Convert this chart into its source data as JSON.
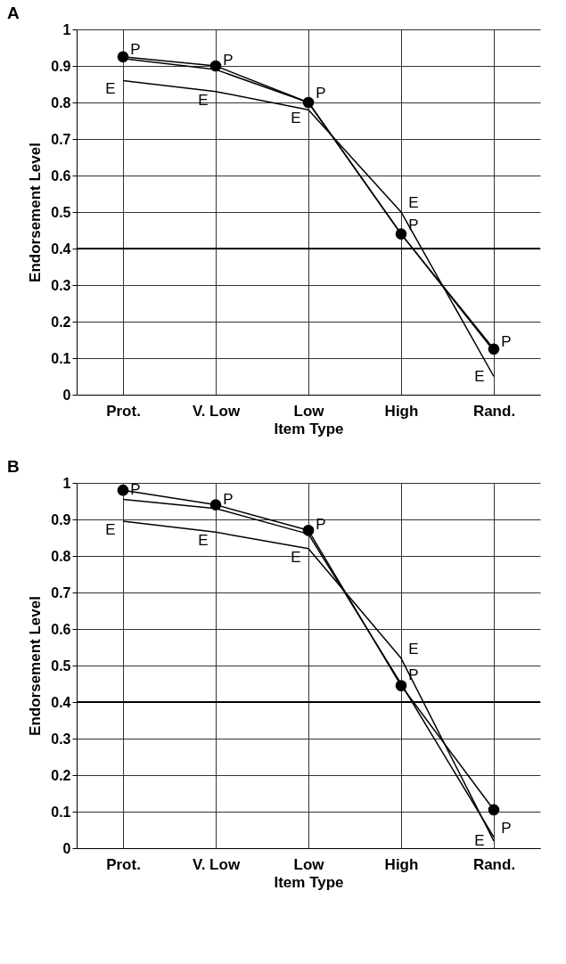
{
  "chart_data": [
    {
      "type": "line",
      "title": "A",
      "xlabel": "Item Type",
      "ylabel": "Endorsement Level",
      "categories": [
        "Prot.",
        "V. Low",
        "Low",
        "High",
        "Rand."
      ],
      "ylim": [
        0,
        1
      ],
      "yticks": [
        0,
        0.1,
        0.2,
        0.3,
        0.4,
        0.5,
        0.6,
        0.7,
        0.8,
        0.9,
        1
      ],
      "grid": true,
      "legend": false,
      "line_style": "solid",
      "series": [
        {
          "color": "#000000",
          "marker": "circle",
          "values": [
            0.925,
            0.9,
            0.8,
            0.44,
            0.125
          ]
        },
        {
          "name": "P",
          "color": "#000000",
          "marker": "none",
          "values": [
            0.92,
            0.89,
            0.8,
            0.44,
            0.12
          ]
        },
        {
          "name": "E",
          "color": "#000000",
          "marker": "none",
          "values": [
            0.86,
            0.83,
            0.78,
            0.5,
            0.05
          ]
        }
      ],
      "ref_lines": [
        {
          "axis": "y",
          "value": 0.4,
          "color": "#000000"
        }
      ]
    },
    {
      "type": "line",
      "title": "B",
      "xlabel": "Item Type",
      "ylabel": "Endorsement Level",
      "categories": [
        "Prot.",
        "V. Low",
        "Low",
        "High",
        "Rand."
      ],
      "ylim": [
        0,
        1
      ],
      "yticks": [
        0,
        0.1,
        0.2,
        0.3,
        0.4,
        0.5,
        0.6,
        0.7,
        0.8,
        0.9,
        1
      ],
      "grid": true,
      "legend": false,
      "line_style": "solid",
      "series": [
        {
          "color": "#000000",
          "marker": "circle",
          "values": [
            0.98,
            0.94,
            0.87,
            0.445,
            0.105
          ]
        },
        {
          "name": "P",
          "color": "#000000",
          "marker": "none",
          "values": [
            0.955,
            0.93,
            0.86,
            0.45,
            0.03
          ]
        },
        {
          "name": "E",
          "color": "#000000",
          "marker": "none",
          "values": [
            0.895,
            0.865,
            0.82,
            0.52,
            0.02
          ]
        }
      ],
      "ref_lines": [
        {
          "axis": "y",
          "value": 0.4,
          "color": "#000000"
        }
      ]
    }
  ]
}
